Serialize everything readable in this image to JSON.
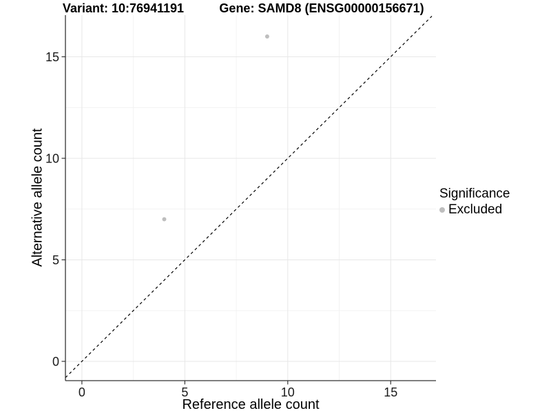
{
  "figure": {
    "title_left": "Variant: 10:76941191",
    "title_right": "Gene: SAMD8 (ENSG00000156671)"
  },
  "chart_data": {
    "type": "scatter",
    "title": "Variant: 10:76941191   Gene: SAMD8 (ENSG00000156671)",
    "xlabel": "Reference allele count",
    "ylabel": "Alternative allele count",
    "xlim": [
      -0.8,
      17.2
    ],
    "ylim": [
      -0.95,
      17.05
    ],
    "x_ticks": [
      0,
      5,
      10,
      15
    ],
    "y_ticks": [
      0,
      5,
      10,
      15
    ],
    "x_minor_ticks": [
      2.5,
      7.5,
      12.5
    ],
    "y_minor_ticks": [
      2.5,
      7.5,
      12.5
    ],
    "grid": true,
    "series": [
      {
        "name": "Excluded",
        "points": [
          {
            "x": 4,
            "y": 7
          },
          {
            "x": 9,
            "y": 16
          }
        ]
      }
    ],
    "reference_line": {
      "kind": "identity",
      "style": "dashed",
      "from": -0.8,
      "to": 17.0,
      "color": "#000000"
    },
    "legend": {
      "title": "Significance",
      "position": "right",
      "entries": [
        {
          "label": "Excluded",
          "marker": "circle",
          "color": "#bebebe"
        }
      ]
    },
    "point_color": "#bebebe",
    "point_radius": 3,
    "colors": {
      "background": "#ffffff",
      "grid_major": "#e7e7e7",
      "grid_minor": "#f2f2f2",
      "axis_line": "#333333",
      "tick_text": "#1a1a1a"
    }
  }
}
